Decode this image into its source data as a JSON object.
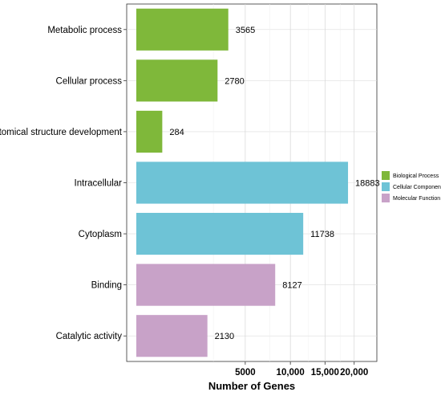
{
  "chart_data": {
    "type": "bar",
    "orientation": "horizontal",
    "title": "",
    "xlabel": "Number of Genes",
    "ylabel": "",
    "x_scale": "sqrt",
    "xlim": [
      0,
      22000
    ],
    "x_ticks": [
      5000,
      10000,
      15000,
      20000
    ],
    "x_tick_labels": [
      "5000",
      "10,000",
      "15,000",
      "20,000"
    ],
    "grid": true,
    "legend_position": "right",
    "categories": [
      "Metabolic process",
      "Cellular process",
      "Anatomical structure development",
      "Intracellular",
      "Cytoplasm",
      "Binding",
      "Catalytic activity"
    ],
    "values": [
      3565,
      2780,
      284,
      18883,
      11738,
      8127,
      2130
    ],
    "value_labels": [
      "3565",
      "2780",
      "284",
      "18883",
      "11738",
      "8127",
      "2130"
    ],
    "groups": [
      "Biological Process",
      "Biological Process",
      "Biological Process",
      "Cellular Component",
      "Cellular Component",
      "Molecular Function",
      "Molecular Function"
    ],
    "legend": [
      {
        "name": "Biological Process",
        "color": "#7fb83a"
      },
      {
        "name": "Cellular Component",
        "color": "#6ec3d6"
      },
      {
        "name": "Molecular Function",
        "color": "#c8a2c8"
      }
    ]
  }
}
